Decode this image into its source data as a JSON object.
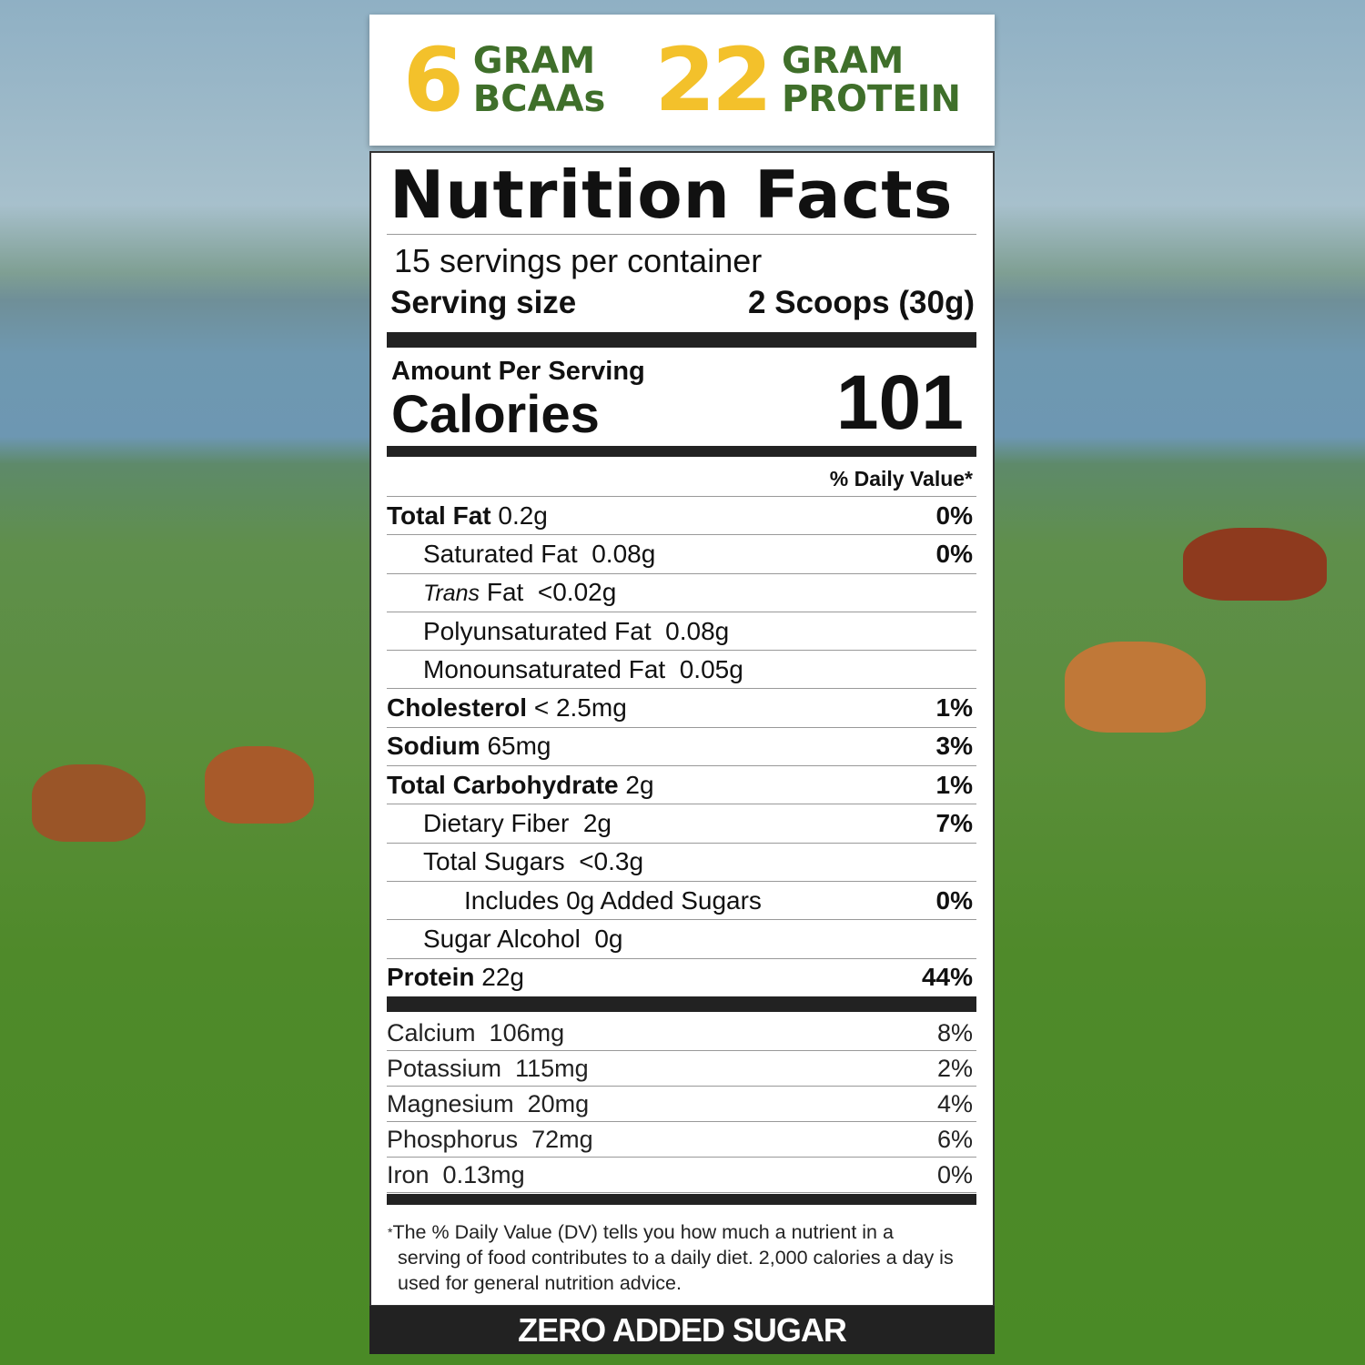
{
  "banner": {
    "bcaa_num": "6",
    "bcaa_l1": "GRAM",
    "bcaa_l2": "BCAAs",
    "protein_num": "22",
    "protein_l1": "GRAM",
    "protein_l2": "PROTEIN"
  },
  "colors": {
    "yellow": "#f3c12b",
    "green": "#3f6f2a",
    "dark": "#222222"
  },
  "label": {
    "title": "Nutrition Facts",
    "servings": "15 servings per container",
    "serving_size_label": "Serving size",
    "serving_size_value": "2 Scoops (30g)",
    "amount_per_serving": "Amount Per Serving",
    "calories_label": "Calories",
    "calories_value": "101",
    "dv_header": "% Daily Value*"
  },
  "nutrients": [
    {
      "name": "Total Fat",
      "amount": "0.2g",
      "dv": "0%",
      "bold": true,
      "indent": 0
    },
    {
      "name": "Saturated Fat",
      "amount": "0.08g",
      "dv": "0%",
      "bold": false,
      "indent": 1
    },
    {
      "name": "Trans",
      "name2": "Fat",
      "amount": "<0.02g",
      "dv": "",
      "bold": false,
      "indent": 1,
      "italic": true
    },
    {
      "name": "Polyunsaturated Fat",
      "amount": "0.08g",
      "dv": "",
      "bold": false,
      "indent": 1
    },
    {
      "name": "Monounsaturated Fat",
      "amount": "0.05g",
      "dv": "",
      "bold": false,
      "indent": 1
    },
    {
      "name": "Cholesterol",
      "amount": "< 2.5mg",
      "dv": "1%",
      "bold": true,
      "indent": 0
    },
    {
      "name": "Sodium",
      "amount": "65mg",
      "dv": "3%",
      "bold": true,
      "indent": 0
    },
    {
      "name": "Total Carbohydrate",
      "amount": "2g",
      "dv": "1%",
      "bold": true,
      "indent": 0
    },
    {
      "name": "Dietary Fiber",
      "amount": "2g",
      "dv": "7%",
      "bold": false,
      "indent": 1
    },
    {
      "name": "Total Sugars",
      "amount": "<0.3g",
      "dv": "",
      "bold": false,
      "indent": 1
    },
    {
      "name": "Includes 0g Added Sugars",
      "amount": "",
      "dv": "0%",
      "bold": false,
      "indent": 2
    },
    {
      "name": "Sugar Alcohol",
      "amount": "0g",
      "dv": "",
      "bold": false,
      "indent": 1
    },
    {
      "name": "Protein",
      "amount": "22g",
      "dv": "44%",
      "bold": true,
      "indent": 0
    }
  ],
  "minerals": [
    {
      "name": "Calcium",
      "amount": "106mg",
      "dv": "8%"
    },
    {
      "name": "Potassium",
      "amount": "115mg",
      "dv": "2%"
    },
    {
      "name": "Magnesium",
      "amount": "20mg",
      "dv": "4%"
    },
    {
      "name": "Phosphorus",
      "amount": "72mg",
      "dv": "6%"
    },
    {
      "name": "Iron",
      "amount": "0.13mg",
      "dv": "0%"
    }
  ],
  "footnote": {
    "star": "*",
    "text": "The % Daily Value (DV) tells you how much a nutrient in a serving of food contributes to a daily diet. 2,000 calories a day is used for general nutrition advice."
  },
  "footer": {
    "text": "ZERO ADDED SUGAR"
  }
}
